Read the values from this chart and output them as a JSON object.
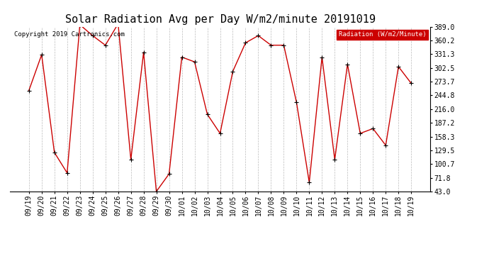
{
  "title": "Solar Radiation Avg per Day W/m2/minute 20191019",
  "copyright": "Copyright 2019 Cartronics.com",
  "legend_label": "Radiation (W/m2/Minute)",
  "x_labels": [
    "09/19",
    "09/20",
    "09/21",
    "09/22",
    "09/23",
    "09/24",
    "09/25",
    "09/26",
    "09/27",
    "09/28",
    "09/29",
    "09/30",
    "10/01",
    "10/02",
    "10/03",
    "10/04",
    "10/05",
    "10/06",
    "10/07",
    "10/08",
    "10/09",
    "10/10",
    "10/11",
    "10/12",
    "10/13",
    "10/14",
    "10/15",
    "10/16",
    "10/17",
    "10/18",
    "10/19"
  ],
  "y_values": [
    255,
    330,
    125,
    82,
    393,
    370,
    350,
    395,
    110,
    335,
    43,
    80,
    325,
    315,
    205,
    165,
    295,
    355,
    370,
    350,
    350,
    230,
    62,
    325,
    110,
    310,
    165,
    175,
    140,
    305,
    270
  ],
  "ylim": [
    43.0,
    389.0
  ],
  "y_ticks": [
    43.0,
    71.8,
    100.7,
    129.5,
    158.3,
    187.2,
    216.0,
    244.8,
    273.7,
    302.5,
    331.3,
    360.2,
    389.0
  ],
  "line_color": "#cc0000",
  "marker_color": "#000000",
  "bg_color": "#ffffff",
  "plot_bg_color": "#ffffff",
  "grid_color": "#bbbbbb",
  "title_fontsize": 11,
  "copyright_fontsize": 6.5,
  "tick_fontsize": 7,
  "legend_bg_color": "#cc0000",
  "legend_text_color": "#ffffff"
}
